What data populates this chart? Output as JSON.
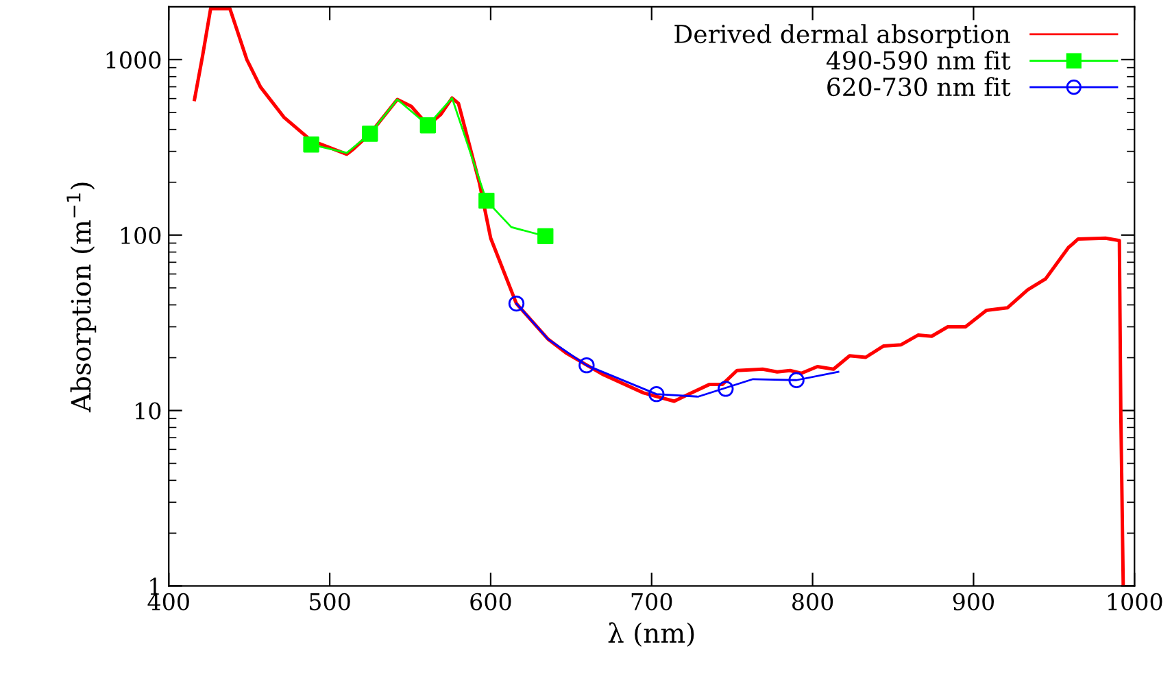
{
  "chart_data": {
    "type": "line",
    "xlabel": "λ (nm)",
    "ylabel": "Absorption (m$^{−1}$)",
    "xlim": [
      400,
      1000
    ],
    "ylim": [
      1,
      2000
    ],
    "xticks": [
      400,
      500,
      600,
      700,
      800,
      900,
      1000
    ],
    "yticks": [
      1,
      10,
      100,
      1000
    ],
    "log": "y",
    "grid": false,
    "legend": "top right",
    "series": [
      {
        "name": "Derived dermal absorption",
        "color": "#ff0000",
        "x": [
          416,
          421,
          426,
          438,
          448.5,
          457,
          471.5,
          488.5,
          510.6,
          515,
          525,
          542,
          550.6,
          561,
          569,
          576,
          580,
          593,
          600,
          614.5,
          616,
          635.7,
          646.8,
          670,
          695,
          714,
          723,
          736,
          744,
          753,
          769,
          778,
          786,
          793,
          803,
          813,
          823,
          833,
          844,
          855,
          865.5,
          874,
          884,
          895,
          908,
          921,
          933.6,
          944.7,
          959,
          961,
          965,
          982,
          990.6,
          991.5,
          993
        ],
        "values": [
          593,
          1050,
          1950,
          1950,
          1000,
          698,
          470,
          346,
          289,
          311,
          378,
          593,
          542,
          422,
          487,
          604,
          562,
          198,
          96,
          44,
          40.7,
          25.5,
          21.3,
          16,
          12.6,
          11.3,
          12.4,
          14.1,
          14.1,
          16.9,
          17.2,
          16.6,
          16.9,
          16.3,
          17.8,
          17.2,
          20.5,
          20.1,
          23.3,
          23.7,
          26.9,
          26.5,
          30,
          30,
          37.2,
          38.5,
          48.7,
          56.2,
          85,
          88,
          95,
          96,
          93,
          9.8,
          1
        ]
      },
      {
        "name": "490-590 nm fit",
        "color": "#00ff00",
        "x": [
          488.5,
          510.6,
          525,
          542,
          561,
          576,
          597.4,
          612.8,
          634
        ],
        "values": [
          328,
          294,
          378,
          593,
          422,
          604,
          157,
          111,
          98.5
        ]
      },
      {
        "type": "scatter",
        "marker": "square",
        "color": "#00ff00",
        "x": [
          488.5,
          525,
          561,
          597.4,
          634
        ],
        "values": [
          328,
          378,
          422,
          157,
          98.5
        ]
      },
      {
        "name": "620-730 nm fit",
        "color": "#0000ff",
        "x": [
          616,
          635.7,
          659.6,
          703,
          729,
          763,
          790,
          816
        ],
        "values": [
          40.7,
          25.5,
          18.1,
          12.4,
          12,
          15.1,
          14.9,
          16.6
        ]
      },
      {
        "type": "scatter",
        "marker": "circle",
        "color": "#0000ff",
        "x": [
          616,
          659.6,
          703,
          746,
          790
        ],
        "values": [
          40.7,
          18.1,
          12.4,
          13.3,
          14.9
        ]
      }
    ]
  }
}
